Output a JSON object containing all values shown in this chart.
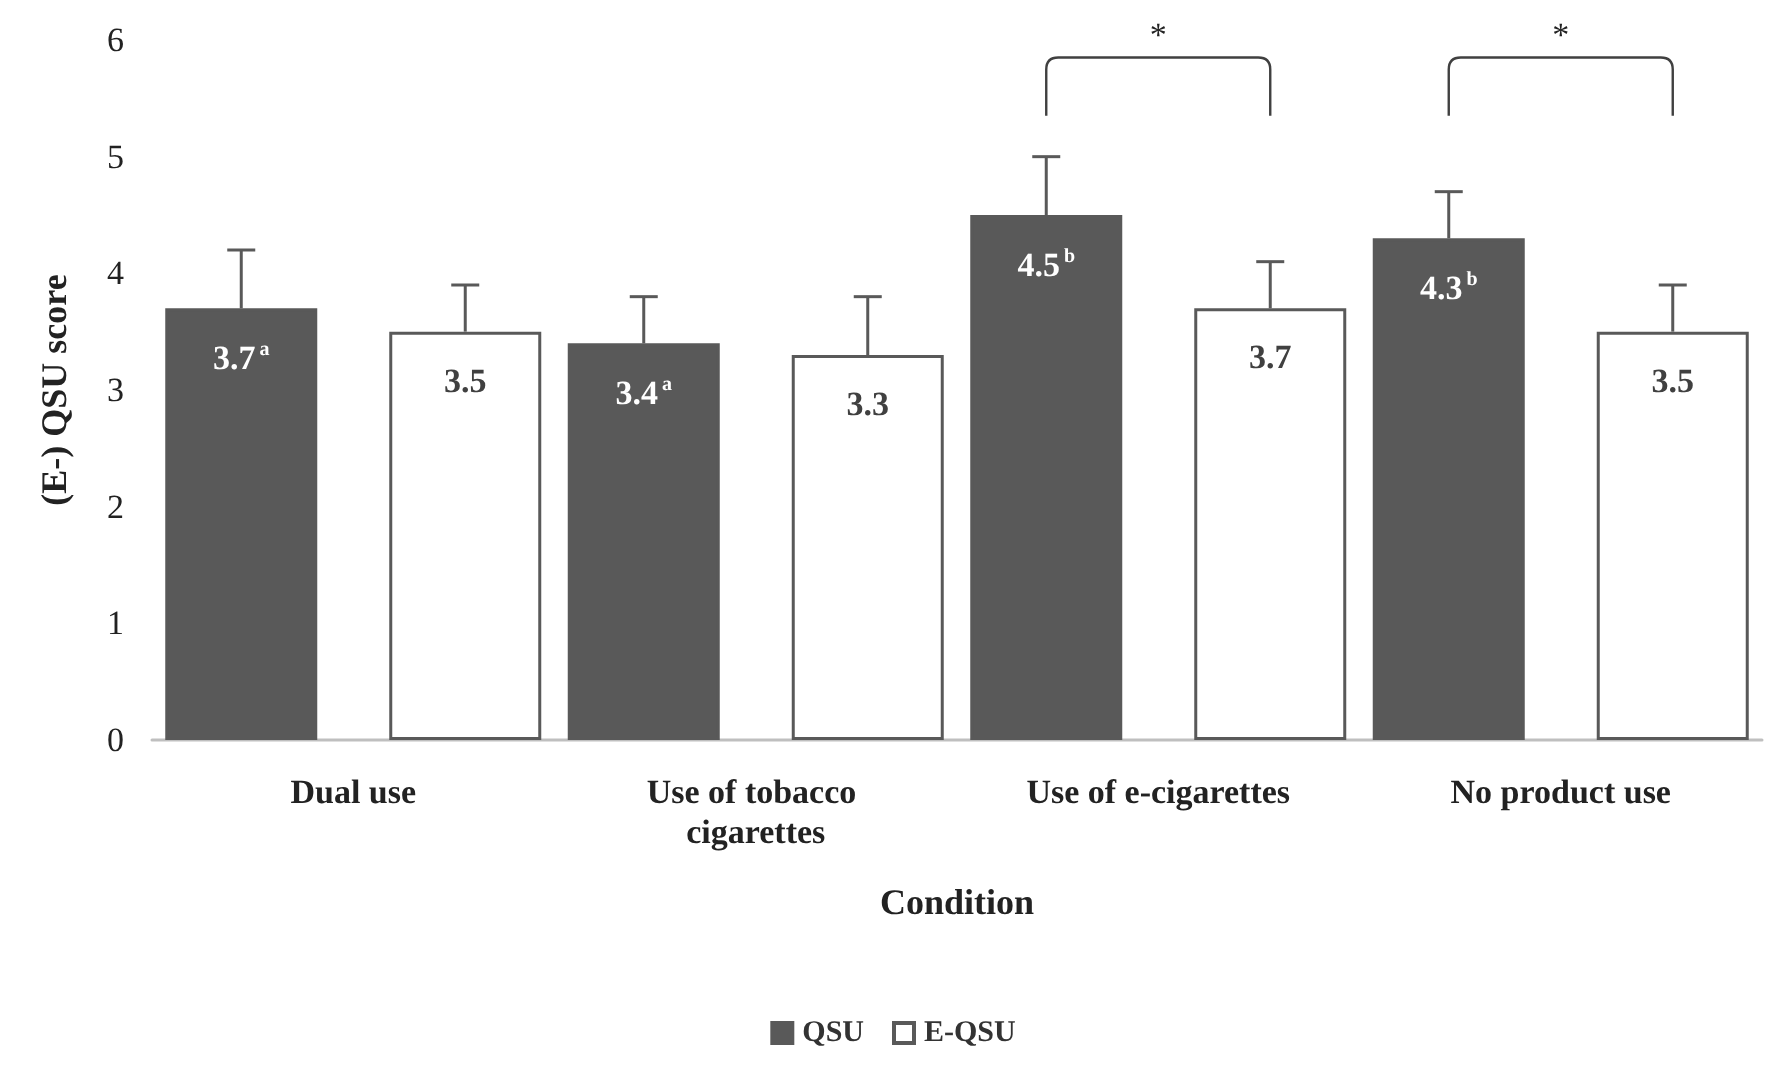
{
  "chart_data": {
    "type": "bar",
    "xlabel": "Condition",
    "ylabel": "(E-) QSU score",
    "categories": [
      "Dual use",
      "Use of tobacco cigarettes",
      "Use of e-cigarettes",
      "No product use"
    ],
    "series": [
      {
        "name": "QSU",
        "color": "#595959",
        "values": [
          3.7,
          3.4,
          4.5,
          4.3
        ],
        "errors": [
          [
            3.7,
            4.2
          ],
          [
            3.4,
            3.8
          ],
          [
            4.5,
            5.0
          ],
          [
            4.3,
            4.7
          ]
        ],
        "value_labels": [
          "3.7$^{a}$",
          "3.4$^{a}$",
          "4.5$^{b}$",
          "4.3$^{b}$"
        ]
      },
      {
        "name": "E-QSU",
        "color": "#ffffff",
        "values": [
          3.5,
          3.3,
          3.7,
          3.5
        ],
        "errors": [
          [
            3.5,
            3.9
          ],
          [
            3.3,
            3.8
          ],
          [
            3.7,
            4.1
          ],
          [
            3.5,
            3.9
          ]
        ],
        "value_labels": [
          "3.5",
          "3.3",
          "3.7",
          "3.5"
        ]
      }
    ],
    "ylim": [
      0,
      6
    ],
    "yticks": [
      0,
      1,
      2,
      3,
      4,
      5,
      6
    ],
    "grid": false,
    "legend": "bottom",
    "annotations": [
      "*",
      "*"
    ]
  }
}
